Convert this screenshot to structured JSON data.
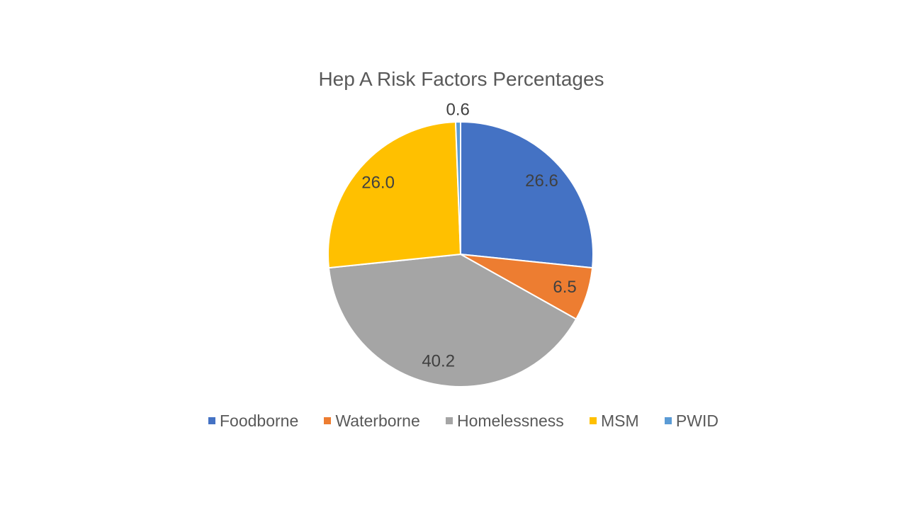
{
  "chart_data": {
    "type": "pie",
    "title": "Hep A Risk Factors Percentages",
    "categories": [
      "Foodborne",
      "Waterborne",
      "Homelessness",
      "MSM",
      "PWID"
    ],
    "values": [
      26.6,
      6.5,
      40.2,
      26.0,
      0.6
    ],
    "data_labels": [
      "26.6",
      "6.5",
      "40.2",
      "26.0",
      "0.6"
    ],
    "colors": [
      "#4472C4",
      "#ED7D31",
      "#A5A5A5",
      "#FFC000",
      "#5B9BD5"
    ],
    "start_angle_deg": 0,
    "direction": "clockwise",
    "legend_position": "bottom",
    "legend_entries": [
      "Foodborne",
      "Waterborne",
      "Homelessness",
      "MSM",
      "PWID"
    ],
    "slice_border_color": "#ffffff",
    "data_label_color": "#404040",
    "title_color": "#595959",
    "legend_text_color": "#595959",
    "background_color": "#ffffff"
  }
}
